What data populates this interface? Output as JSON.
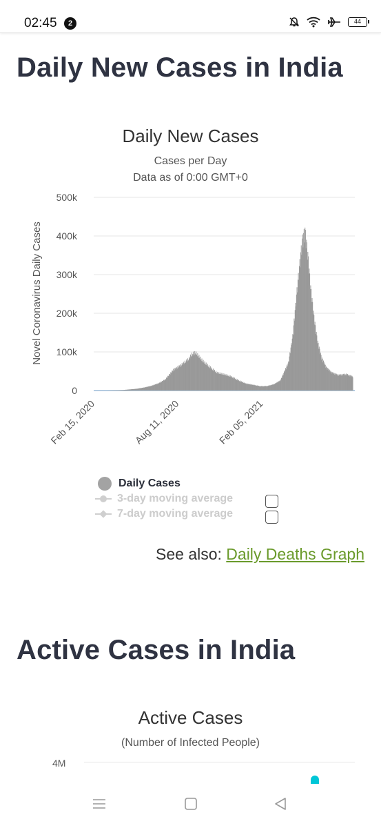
{
  "status_bar": {
    "time": "02:45",
    "notification_count": "2",
    "battery": "44"
  },
  "section1": {
    "title": "Daily New Cases in India",
    "chart_title": "Daily New Cases",
    "chart_subtitle1": "Cases per Day",
    "chart_subtitle2": "Data as of 0:00 GMT+0",
    "legend": {
      "daily": "Daily Cases",
      "avg3": "3-day moving average",
      "avg7": "7-day moving average"
    },
    "see_also_prefix": "See also:",
    "see_also_link": "Daily Deaths Graph"
  },
  "section2": {
    "title": "Active Cases in India",
    "chart_title": "Active Cases",
    "chart_subtitle": "(Number of Infected People)",
    "ytick_top": "4M"
  },
  "colors": {
    "bars": "#999999",
    "link": "#6a9a2b",
    "grid": "#e6e6e6",
    "active_marker": "#00c6d7"
  },
  "chart_data": {
    "type": "bar",
    "title": "Daily New Cases",
    "subtitle": "Cases per Day",
    "ylabel": "Novel Coronavirus Daily Cases",
    "xlabel": "",
    "ylim": [
      0,
      500000
    ],
    "yticks": [
      "0",
      "100k",
      "200k",
      "300k",
      "400k",
      "500k"
    ],
    "xticks": [
      "Feb 15, 2020",
      "Aug 11, 2020",
      "Feb 05, 2021"
    ],
    "grid": true,
    "legend": "bottom",
    "series": [
      {
        "name": "Daily Cases",
        "x": [
          "2020-02-15",
          "2020-03-15",
          "2020-04-15",
          "2020-05-15",
          "2020-06-01",
          "2020-06-15",
          "2020-07-01",
          "2020-07-15",
          "2020-08-01",
          "2020-08-15",
          "2020-09-01",
          "2020-09-10",
          "2020-09-17",
          "2020-09-25",
          "2020-10-01",
          "2020-10-15",
          "2020-11-01",
          "2020-11-15",
          "2020-12-01",
          "2020-12-15",
          "2021-01-01",
          "2021-01-15",
          "2021-02-01",
          "2021-02-15",
          "2021-03-01",
          "2021-03-15",
          "2021-04-01",
          "2021-04-10",
          "2021-04-20",
          "2021-04-30",
          "2021-05-06",
          "2021-05-12",
          "2021-05-18",
          "2021-05-25",
          "2021-06-01",
          "2021-06-10",
          "2021-06-20",
          "2021-07-01",
          "2021-07-15",
          "2021-08-01",
          "2021-08-15"
        ],
        "values": [
          0,
          100,
          1200,
          4500,
          8000,
          12000,
          19000,
          29000,
          54000,
          64000,
          80000,
          95000,
          97000,
          86000,
          77000,
          62000,
          46000,
          42000,
          36000,
          27000,
          18000,
          15000,
          11000,
          11500,
          16000,
          26000,
          72000,
          140000,
          270000,
          385000,
          412000,
          350000,
          265000,
          190000,
          130000,
          85000,
          60000,
          47000,
          40000,
          42000,
          36000
        ]
      }
    ]
  }
}
